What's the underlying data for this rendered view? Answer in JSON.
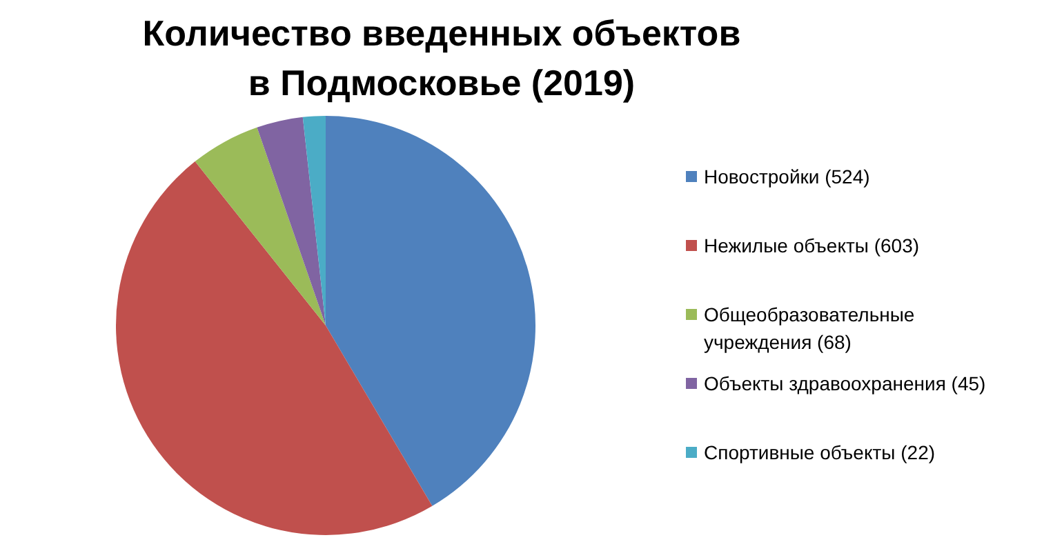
{
  "chart_data": {
    "type": "pie",
    "title": "Количество введенных объектов в Подмосковье (2019)",
    "categories": [
      "Новостройки (524)",
      "Нежилые объекты (603)",
      "Общеобразовательные учреждения (68)",
      "Объекты здравоохранения (45)",
      "Спортивные объекты (22)"
    ],
    "values": [
      524,
      603,
      68,
      45,
      22
    ],
    "colors": [
      "#4f81bd",
      "#c0504d",
      "#9bbb59",
      "#8064a2",
      "#4bacc6"
    ],
    "legend": "right"
  }
}
